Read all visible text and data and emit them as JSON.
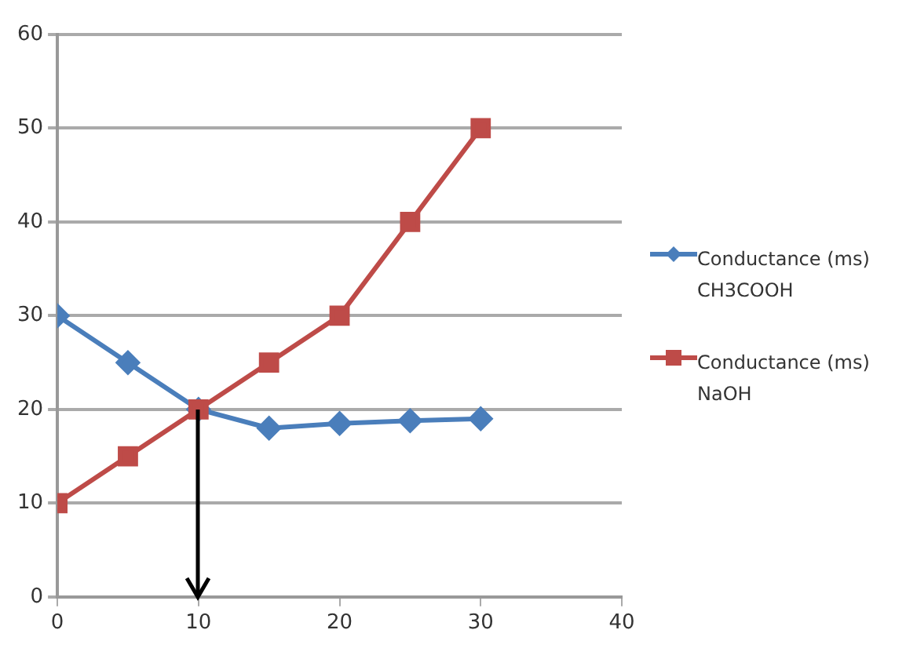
{
  "chart_data": {
    "type": "line",
    "x": [
      0,
      5,
      10,
      15,
      20,
      25,
      30
    ],
    "series": [
      {
        "name": "Conductance (ms) CH3COOH",
        "color": "#4a7ebb",
        "marker": "diamond",
        "values": [
          30,
          25,
          20,
          18,
          18.5,
          18.8,
          19
        ]
      },
      {
        "name": "Conductance (ms) NaOH",
        "color": "#be4b48",
        "marker": "square",
        "values": [
          10,
          15,
          20,
          25,
          30,
          40,
          50
        ]
      }
    ],
    "xlim": [
      0,
      40
    ],
    "xticks": [
      0,
      10,
      20,
      30,
      40
    ],
    "ylim": [
      0,
      60
    ],
    "yticks": [
      0,
      10,
      20,
      30,
      40,
      50,
      60
    ],
    "grid": "y",
    "legend": "right"
  }
}
